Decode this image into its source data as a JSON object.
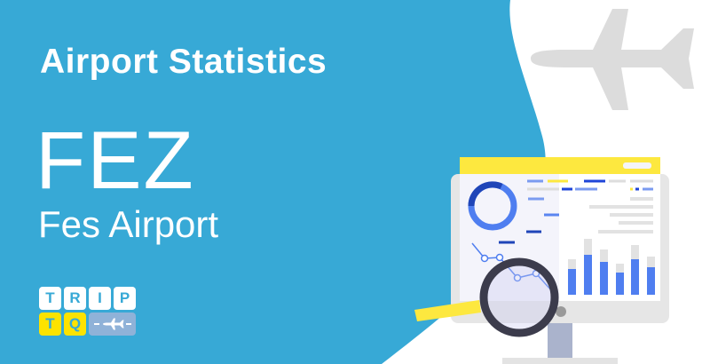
{
  "header": {
    "title": "Airport Statistics"
  },
  "airport": {
    "code": "FEZ",
    "name": "Fes Airport"
  },
  "logo": {
    "row1": [
      "T",
      "R",
      "I",
      "P"
    ],
    "row2": [
      "T",
      "Q"
    ],
    "plane_icon": "airplane-icon",
    "text": "TRIP TQ"
  },
  "colors": {
    "background": "#37a9d6",
    "accent_yellow": "#fde300",
    "chart_blue": "#4f7ef0"
  },
  "illustration": {
    "icons": [
      "airplane-icon",
      "monitor-icon",
      "magnifier-icon",
      "donut-chart-icon",
      "bar-chart-icon"
    ]
  }
}
